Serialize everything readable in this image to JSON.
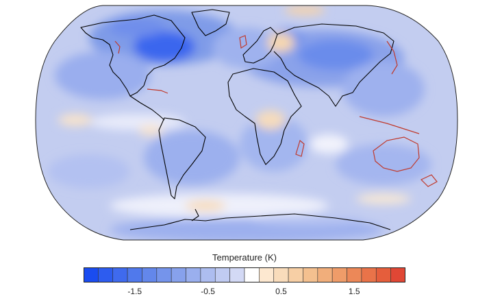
{
  "map": {
    "projection": "Robinson",
    "variable": "temperature anomaly",
    "coastline_color": "#000000",
    "highlighted_coast_color": "#c0392b"
  },
  "colorbar": {
    "title": "Temperature (K)",
    "levels": [
      -2.2,
      -2.0,
      -1.8,
      -1.6,
      -1.4,
      -1.2,
      -1.0,
      -0.8,
      -0.6,
      -0.4,
      -0.2,
      0.0,
      0.2,
      0.4,
      0.6,
      0.8,
      1.0,
      1.2,
      1.4,
      1.6,
      1.8,
      2.0,
      2.2
    ],
    "colors": [
      "#1a4cf0",
      "#2d5cef",
      "#3f6aee",
      "#5079ec",
      "#6387eb",
      "#7594eb",
      "#87a1ec",
      "#9aafee",
      "#adbdf0",
      "#c0cbf2",
      "#d3d9f5",
      "#ffffff",
      "#fde8d0",
      "#f9dcbb",
      "#f7cfa5",
      "#f4c08f",
      "#f1ae7b",
      "#ef9c69",
      "#ec8858",
      "#e97349",
      "#e55e3c",
      "#e04735"
    ],
    "tick_labels": [
      "-1.5",
      "-0.5",
      "0.5",
      "1.5"
    ],
    "tick_values": [
      -1.5,
      -0.5,
      0.5,
      1.5
    ]
  }
}
